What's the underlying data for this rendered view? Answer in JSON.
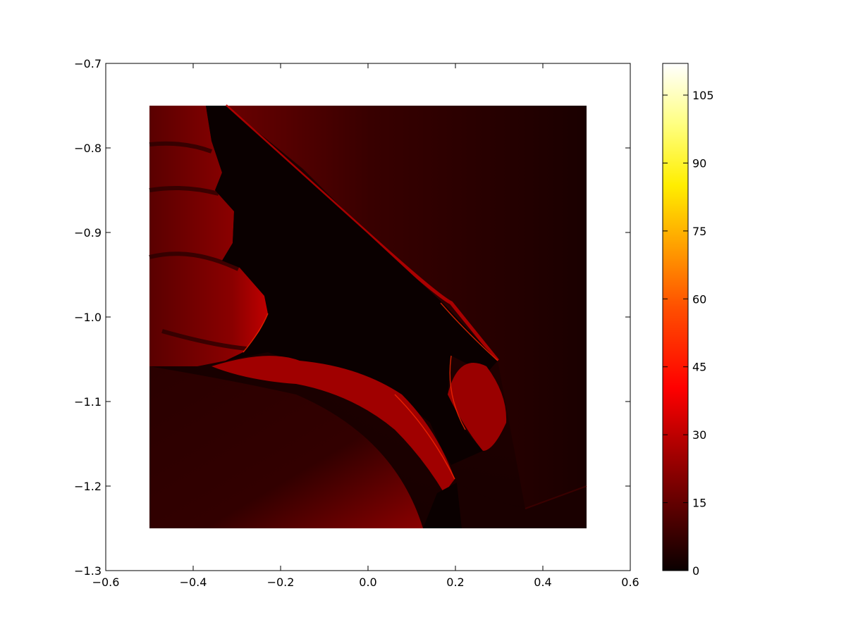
{
  "chart_data": {
    "type": "heatmap",
    "title": "",
    "xlabel": "",
    "ylabel": "",
    "xlim": [
      -0.6,
      0.6
    ],
    "ylim": [
      -1.3,
      -0.7
    ],
    "image_extent": {
      "x": [
        -0.5,
        0.5
      ],
      "y": [
        -1.25,
        -0.75
      ]
    },
    "grid": false,
    "xticks": [
      -0.6,
      -0.4,
      -0.2,
      0.0,
      0.2,
      0.4,
      0.6
    ],
    "xtick_labels": [
      "−0.6",
      "−0.4",
      "−0.2",
      "0.0",
      "0.2",
      "0.4",
      "0.6"
    ],
    "yticks": [
      -0.7,
      -0.8,
      -0.9,
      -1.0,
      -1.1,
      -1.2,
      -1.3
    ],
    "ytick_labels": [
      "−0.7",
      "−0.8",
      "−0.9",
      "−1.0",
      "−1.1",
      "−1.2",
      "−1.3"
    ],
    "colorbar": {
      "colormap": "hot",
      "range": [
        0,
        112
      ],
      "ticks": [
        0,
        15,
        30,
        45,
        60,
        75,
        90,
        105
      ],
      "tick_labels": [
        "0",
        "15",
        "30",
        "45",
        "60",
        "75",
        "90",
        "105"
      ],
      "placement": "right"
    },
    "colors": {
      "black": "#000000",
      "dark_red": "#0a0000",
      "red": "#cc0000",
      "bright_red": "#ff0000",
      "orange": "#ff8000",
      "yellow": "#ffff00",
      "white": "#ffffff"
    }
  }
}
